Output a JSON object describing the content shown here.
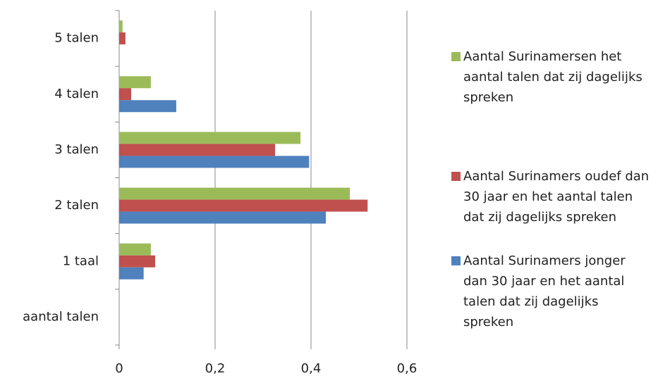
{
  "chart_data": {
    "type": "hbar",
    "categories": [
      "aantal talen",
      "1 taal",
      "2 talen",
      "3 talen",
      "4 talen",
      "5 talen"
    ],
    "series": [
      {
        "name": "Aantal Surinamersen het aantal talen dat zij dagelijks spreken",
        "color": "#9bbb59",
        "values": [
          null,
          0.066,
          0.481,
          0.378,
          0.066,
          0.007
        ]
      },
      {
        "name": "Aantal Surinamers oudef dan 30 jaar en het aantal talen dat zij dagelijks spreken",
        "color": "#c0504d",
        "values": [
          null,
          0.075,
          0.518,
          0.325,
          0.025,
          0.013
        ]
      },
      {
        "name": "Aantal Surinamers jonger dan 30 jaar en het aantal talen dat zij dagelijks spreken",
        "color": "#4f81bd",
        "values": [
          null,
          0.051,
          0.431,
          0.396,
          0.119,
          0
        ]
      }
    ],
    "xlim": [
      0,
      0.6
    ],
    "xticks": [
      0,
      {
        "value": 0.2,
        "label": "0,2"
      },
      {
        "value": 0.4,
        "label": "0,4"
      },
      {
        "value": 0.6,
        "label": "0,6"
      }
    ],
    "grid": true
  }
}
